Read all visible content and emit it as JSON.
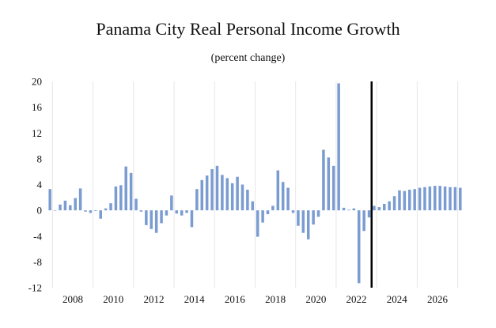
{
  "chart_data": {
    "type": "bar",
    "title": "Panama City Real Personal Income Growth",
    "subtitle": "(percent change)",
    "xlabel": "",
    "ylabel": "",
    "ylim": [
      -12,
      20
    ],
    "yticks": [
      "20",
      "16",
      "12",
      "8",
      "4",
      "0",
      "-4",
      "-8",
      "-12"
    ],
    "xticks": [
      "2008",
      "2010",
      "2012",
      "2014",
      "2016",
      "2018",
      "2020",
      "2022",
      "2024",
      "2026"
    ],
    "grid": "vertical",
    "bar_color": "#7b9cd1",
    "forecast_line_color": "#000000",
    "x_start_quarter": "2006 Q4",
    "forecast_start_quarter": "2022 Q4",
    "values": [
      3.3,
      0.0,
      0.9,
      1.5,
      0.8,
      1.9,
      3.4,
      -0.2,
      -0.4,
      -0.1,
      -1.3,
      0.3,
      1.1,
      3.7,
      3.9,
      6.8,
      5.8,
      1.8,
      -0.2,
      -2.3,
      -2.9,
      -3.5,
      -2.0,
      -0.8,
      2.3,
      -0.5,
      -0.8,
      -0.4,
      -2.6,
      3.3,
      4.7,
      5.4,
      6.4,
      6.9,
      5.5,
      5.0,
      4.2,
      5.2,
      4.0,
      3.2,
      1.4,
      -4.1,
      -1.9,
      -0.6,
      0.7,
      6.2,
      4.4,
      3.5,
      -0.4,
      -2.4,
      -3.5,
      -4.5,
      -2.2,
      -1.0,
      9.4,
      8.2,
      6.9,
      19.7,
      0.4,
      0.1,
      0.3,
      -11.3,
      -3.2,
      -1.1,
      0.7,
      0.5,
      1.0,
      1.4,
      2.2,
      3.1,
      3.0,
      3.2,
      3.3,
      3.5,
      3.6,
      3.7,
      3.8,
      3.8,
      3.7,
      3.6,
      3.6,
      3.5
    ]
  }
}
